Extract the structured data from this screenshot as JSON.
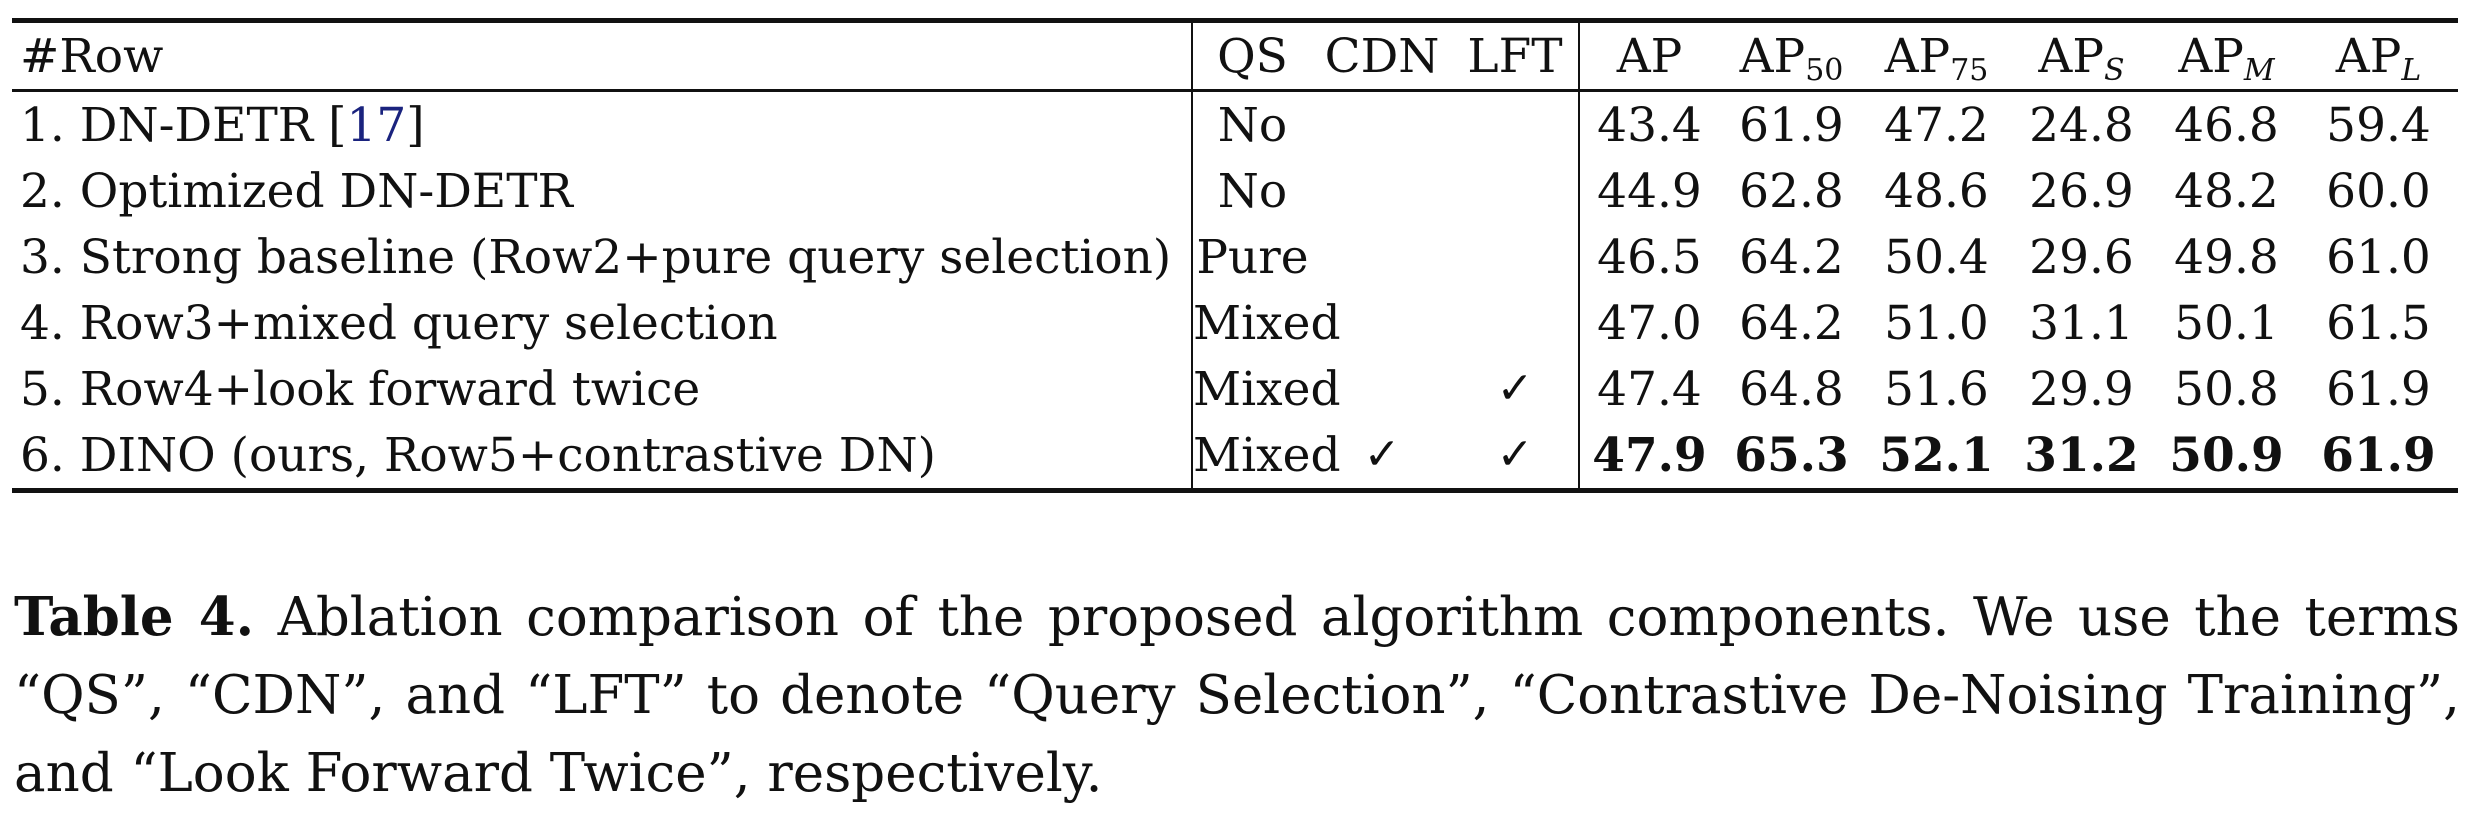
{
  "table": {
    "headers": {
      "row": "#Row",
      "qs": "QS",
      "cdn": "CDN",
      "lft": "LFT",
      "metrics": [
        {
          "base": "AP",
          "sub": ""
        },
        {
          "base": "AP",
          "sub": "50"
        },
        {
          "base": "AP",
          "sub": "75"
        },
        {
          "base": "AP",
          "sub": "S"
        },
        {
          "base": "AP",
          "sub": "M"
        },
        {
          "base": "AP",
          "sub": "L"
        }
      ]
    },
    "check_symbol": "✓",
    "rows": [
      {
        "label": "1. DN-DETR [",
        "ref": "17",
        "label_end": "]",
        "qs": "No",
        "cdn": "",
        "lft": "",
        "values": [
          "43.4",
          "61.9",
          "47.2",
          "24.8",
          "46.8",
          "59.4"
        ]
      },
      {
        "label": "2. Optimized DN-DETR",
        "ref": "",
        "label_end": "",
        "qs": "No",
        "cdn": "",
        "lft": "",
        "values": [
          "44.9",
          "62.8",
          "48.6",
          "26.9",
          "48.2",
          "60.0"
        ]
      },
      {
        "label": "3. Strong baseline (Row2+pure query selection)",
        "ref": "",
        "label_end": "",
        "qs": "Pure",
        "cdn": "",
        "lft": "",
        "values": [
          "46.5",
          "64.2",
          "50.4",
          "29.6",
          "49.8",
          "61.0"
        ]
      },
      {
        "label": "4. Row3+mixed query selection",
        "ref": "",
        "label_end": "",
        "qs": "Mixed",
        "cdn": "",
        "lft": "",
        "values": [
          "47.0",
          "64.2",
          "51.0",
          "31.1",
          "50.1",
          "61.5"
        ]
      },
      {
        "label": "5. Row4+look forward twice",
        "ref": "",
        "label_end": "",
        "qs": "Mixed",
        "cdn": "",
        "lft": "✓",
        "values": [
          "47.4",
          "64.8",
          "51.6",
          "29.9",
          "50.8",
          "61.9"
        ]
      },
      {
        "label": "6. DINO (ours, Row5+contrastive DN)",
        "ref": "",
        "label_end": "",
        "qs": "Mixed",
        "cdn": "✓",
        "lft": "✓",
        "values": [
          "47.9",
          "65.3",
          "52.1",
          "31.2",
          "50.9",
          "61.9"
        ]
      }
    ]
  },
  "caption": {
    "label": "Table 4.",
    "text": " Ablation comparison of the proposed algorithm components. We use the terms “QS”, “CDN”, and “LFT” to denote “Query Selection”, “Contrastive De-Noising Training”, and “Look Forward Twice”, respectively."
  }
}
